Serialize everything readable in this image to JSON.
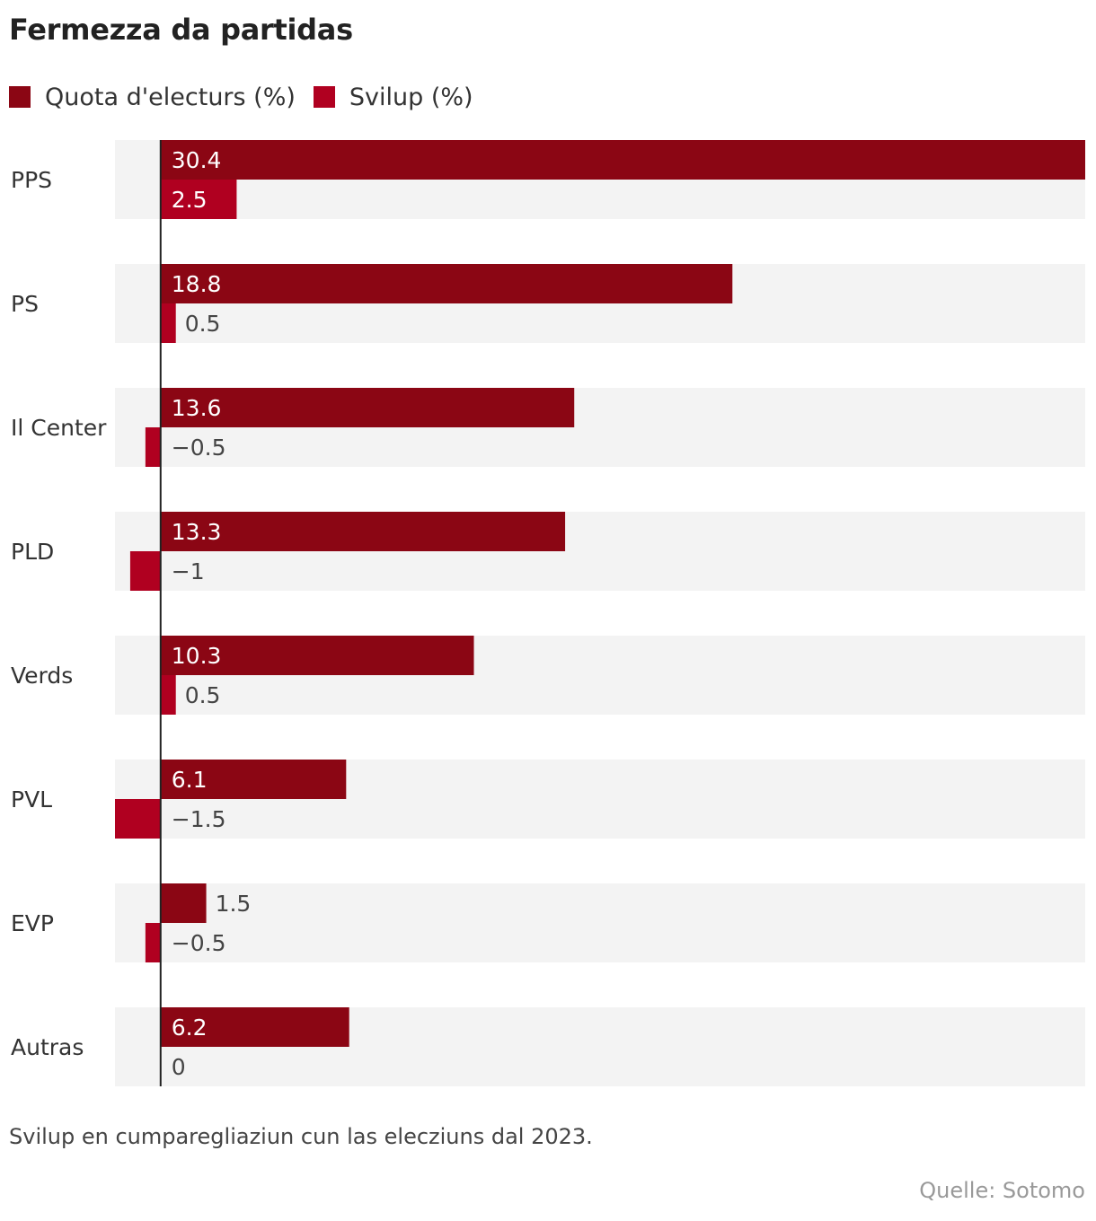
{
  "chart_data": {
    "type": "bar",
    "orientation": "horizontal",
    "title": "Fermezza da partidas",
    "categories": [
      "PPS",
      "PS",
      "Il Center",
      "PLD",
      "Verds",
      "PVL",
      "EVP",
      "Autras"
    ],
    "series": [
      {
        "name": "Quota d'electurs (%)",
        "color": "#8b0614",
        "values": [
          30.4,
          18.8,
          13.6,
          13.3,
          10.3,
          6.1,
          1.5,
          6.2
        ],
        "labels": [
          "30.4",
          "18.8",
          "13.6",
          "13.3",
          "10.3",
          "6.1",
          "1.5",
          "6.2"
        ]
      },
      {
        "name": "Svilup (%)",
        "color": "#b00020",
        "values": [
          2.5,
          0.5,
          -0.5,
          -1,
          0.5,
          -1.5,
          -0.5,
          0
        ],
        "labels": [
          "2.5",
          "0.5",
          "−0.5",
          "−1",
          "0.5",
          "−1.5",
          "−0.5",
          "0"
        ]
      }
    ],
    "xlim": [
      -1.5,
      30.4
    ],
    "note": "Svilup en cumparegliaziun cun las elecziuns dal 2023.",
    "source": "Quelle: Sotomo"
  },
  "colors": {
    "row_background": "#f3f3f3",
    "axis": "#222222",
    "label_inside": "#ffffff",
    "label_outside": "#444444"
  }
}
